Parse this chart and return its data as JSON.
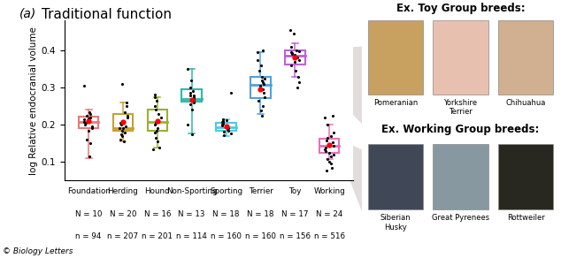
{
  "title": "(a)   Traditional function",
  "ylabel": "log Relative endocranial volume",
  "groups": [
    "Foundation",
    "Herding",
    "Hound",
    "Non-Sporting",
    "Sporting",
    "Terrier",
    "Toy",
    "Working"
  ],
  "N_labels": [
    "N = 10",
    "N = 20",
    "N = 16",
    "N = 13",
    "N = 18",
    "N = 18",
    "N = 17",
    "N = 24"
  ],
  "n_labels": [
    "n = 94",
    "n = 207",
    "n = 201",
    "n = 114",
    "n = 160",
    "n = 160",
    "n = 156",
    "n = 516"
  ],
  "box_colors": [
    "#e87878",
    "#c8a030",
    "#9ab030",
    "#30b8a8",
    "#50c8e8",
    "#50a0e0",
    "#c060d8",
    "#e870b8"
  ],
  "ylim": [
    0.05,
    0.48
  ],
  "yticks": [
    0.1,
    0.2,
    0.3,
    0.4
  ],
  "boxes": {
    "Foundation": {
      "q1": 0.19,
      "median": 0.208,
      "q3": 0.222,
      "whislo": 0.11,
      "whishi": 0.24,
      "mean": 0.21,
      "pts": [
        0.115,
        0.15,
        0.16,
        0.185,
        0.19,
        0.195,
        0.2,
        0.205,
        0.208,
        0.212,
        0.215,
        0.218,
        0.22,
        0.225,
        0.23,
        0.235,
        0.305
      ]
    },
    "Herding": {
      "q1": 0.183,
      "median": 0.192,
      "q3": 0.228,
      "whislo": 0.155,
      "whishi": 0.26,
      "mean": 0.208,
      "pts": [
        0.155,
        0.16,
        0.17,
        0.175,
        0.18,
        0.185,
        0.19,
        0.192,
        0.195,
        0.2,
        0.205,
        0.21,
        0.22,
        0.225,
        0.235,
        0.25,
        0.26,
        0.31
      ]
    },
    "Hound": {
      "q1": 0.185,
      "median": 0.208,
      "q3": 0.24,
      "whislo": 0.14,
      "whishi": 0.275,
      "mean": 0.21,
      "pts": [
        0.133,
        0.14,
        0.155,
        0.165,
        0.18,
        0.185,
        0.19,
        0.2,
        0.205,
        0.21,
        0.22,
        0.23,
        0.24,
        0.25,
        0.265,
        0.275,
        0.282
      ]
    },
    "Non-Sporting": {
      "q1": 0.262,
      "median": 0.27,
      "q3": 0.295,
      "whislo": 0.178,
      "whishi": 0.35,
      "mean": 0.268,
      "pts": [
        0.175,
        0.2,
        0.24,
        0.255,
        0.26,
        0.265,
        0.27,
        0.275,
        0.278,
        0.28,
        0.285,
        0.29,
        0.3,
        0.32,
        0.35
      ]
    },
    "Sporting": {
      "q1": 0.185,
      "median": 0.193,
      "q3": 0.205,
      "whislo": 0.17,
      "whishi": 0.215,
      "mean": 0.195,
      "pts": [
        0.172,
        0.178,
        0.182,
        0.185,
        0.188,
        0.19,
        0.193,
        0.195,
        0.198,
        0.2,
        0.202,
        0.205,
        0.208,
        0.21,
        0.213,
        0.215,
        0.285
      ]
    },
    "Terrier": {
      "q1": 0.272,
      "median": 0.308,
      "q3": 0.33,
      "whislo": 0.228,
      "whishi": 0.395,
      "mean": 0.295,
      "pts": [
        0.225,
        0.238,
        0.25,
        0.265,
        0.275,
        0.285,
        0.295,
        0.305,
        0.31,
        0.315,
        0.32,
        0.325,
        0.33,
        0.345,
        0.36,
        0.375,
        0.395,
        0.4
      ]
    },
    "Toy": {
      "q1": 0.362,
      "median": 0.385,
      "q3": 0.4,
      "whislo": 0.33,
      "whishi": 0.42,
      "mean": 0.382,
      "pts": [
        0.3,
        0.315,
        0.33,
        0.345,
        0.36,
        0.37,
        0.375,
        0.38,
        0.385,
        0.388,
        0.39,
        0.393,
        0.395,
        0.398,
        0.4,
        0.41,
        0.445,
        0.455
      ]
    },
    "Working": {
      "q1": 0.124,
      "median": 0.144,
      "q3": 0.162,
      "whislo": 0.108,
      "whishi": 0.2,
      "mean": 0.145,
      "pts": [
        0.078,
        0.085,
        0.095,
        0.1,
        0.108,
        0.115,
        0.12,
        0.125,
        0.13,
        0.135,
        0.14,
        0.144,
        0.148,
        0.152,
        0.158,
        0.165,
        0.17,
        0.18,
        0.2,
        0.22,
        0.225
      ]
    }
  },
  "footer": "© Biology Letters",
  "toy_title": "Ex. Toy Group breeds:",
  "working_title": "Ex. Working Group breeds:",
  "toy_breeds": [
    "Pomeranian",
    "Yorkshire\nTerrier",
    "Chihuahua"
  ],
  "working_breeds": [
    "Siberian\nHusky",
    "Great Pyrenees",
    "Rottweiler"
  ],
  "connector_color": "#d8cece",
  "background_color": "#ffffff"
}
